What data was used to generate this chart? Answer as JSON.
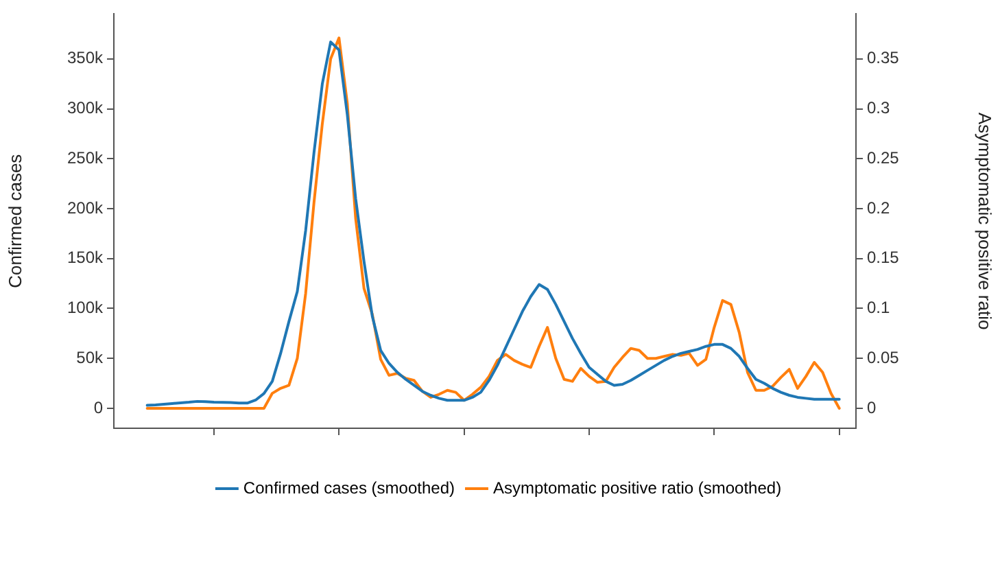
{
  "chart_data": {
    "type": "line",
    "ylabel": "Confirmed cases",
    "y2label": "Asymptomatic positive ratio",
    "categories": [
      null,
      null,
      null,
      null,
      null,
      null,
      null,
      null,
      null,
      null,
      null,
      null,
      null,
      null,
      null,
      null,
      null,
      null,
      null,
      null,
      null,
      null,
      null,
      null,
      null,
      null,
      null,
      null,
      null,
      null,
      null,
      null,
      null,
      null,
      null,
      null,
      null,
      null,
      null,
      null,
      null,
      null,
      null,
      null,
      null,
      null,
      null,
      null,
      null,
      null,
      null,
      null,
      null,
      null,
      null,
      null,
      null,
      null,
      null,
      null,
      null,
      null,
      null,
      null,
      null,
      null,
      null,
      null,
      null,
      null,
      null,
      null,
      null,
      null,
      null,
      null,
      null,
      null,
      null,
      null,
      null,
      null,
      null,
      null,
      null,
      null,
      null,
      null,
      null,
      null
    ],
    "ylim": [
      -20000,
      395000
    ],
    "yticks": [
      {
        "value": 0,
        "label": "0"
      },
      {
        "value": 50000,
        "label": "50k"
      },
      {
        "value": 100000,
        "label": "100k"
      },
      {
        "value": 150000,
        "label": "150k"
      },
      {
        "value": 200000,
        "label": "200k"
      },
      {
        "value": 250000,
        "label": "250k"
      },
      {
        "value": 300000,
        "label": "300k"
      },
      {
        "value": 350000,
        "label": "350k"
      }
    ],
    "y2lim": [
      -0.02,
      0.395
    ],
    "y2ticks": [
      0,
      0.05,
      0.1,
      0.15,
      0.2,
      0.25,
      0.3,
      0.35
    ],
    "legend": "bottom",
    "marker": "none",
    "line_style": "solid",
    "series": [
      {
        "name": "Confirmed cases (smoothed)",
        "color": "#1f77b4",
        "values": [
          null,
          null,
          null,
          null,
          3000,
          3400,
          4100,
          4800,
          5500,
          6100,
          6900,
          6700,
          6200,
          6000,
          5700,
          5300,
          5200,
          8200,
          14800,
          27000,
          55000,
          87000,
          117000,
          178000,
          256000,
          325000,
          367000,
          359000,
          294000,
          210000,
          147000,
          92000,
          58000,
          45000,
          36000,
          29000,
          23000,
          17000,
          13000,
          10000,
          8000,
          8000,
          8000,
          11000,
          16000,
          28000,
          43000,
          61000,
          79000,
          97000,
          112000,
          124000,
          119000,
          104000,
          87000,
          70000,
          55000,
          41000,
          34000,
          27000,
          23000,
          24000,
          28000,
          33000,
          38000,
          43000,
          48000,
          52000,
          55000,
          57000,
          59000,
          62000,
          64000,
          64000,
          60000,
          52000,
          40000,
          29000,
          25000,
          20000,
          16000,
          13000,
          11000,
          10000,
          9000,
          9000,
          9000,
          9000,
          null,
          null
        ]
      },
      {
        "name": "Asymptomatic positive ratio (smoothed)",
        "color": "#ff7f0e",
        "axis": "y2",
        "values": [
          null,
          null,
          null,
          null,
          0,
          0,
          0,
          0,
          0,
          0,
          0,
          0,
          0,
          0,
          0,
          0,
          0,
          0,
          0,
          0.015,
          0.02,
          0.023,
          0.05,
          0.115,
          0.206,
          0.285,
          0.35,
          0.371,
          0.305,
          0.19,
          0.12,
          0.094,
          0.049,
          0.033,
          0.035,
          0.03,
          0.028,
          0.017,
          0.011,
          0.014,
          0.018,
          0.016,
          0.008,
          0.014,
          0.021,
          0.032,
          0.048,
          0.054,
          0.048,
          0.044,
          0.041,
          0.062,
          0.081,
          0.05,
          0.029,
          0.027,
          0.04,
          0.032,
          0.026,
          0.027,
          0.041,
          0.051,
          0.06,
          0.058,
          0.05,
          0.05,
          0.052,
          0.054,
          0.053,
          0.055,
          0.043,
          0.049,
          0.081,
          0.108,
          0.104,
          0.076,
          0.036,
          0.018,
          0.018,
          0.022,
          0.031,
          0.039,
          0.02,
          0.032,
          0.046,
          0.036,
          0.015,
          0,
          null,
          null
        ]
      }
    ]
  }
}
